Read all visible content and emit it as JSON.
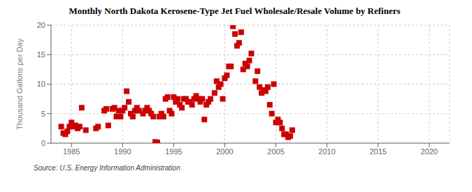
{
  "chart_data": {
    "type": "scatter",
    "title": "Monthly North Dakota Kerosene-Type Jet Fuel Wholesale/Resale Volume by Refiners",
    "ylabel": "Thousand Gallons per Day",
    "annotations": [
      "Source: U.S. Energy Information Administration"
    ],
    "color": "#cc0000",
    "marker": "square",
    "grid": true,
    "xlim": [
      1983,
      2022
    ],
    "ylim": [
      0,
      20
    ],
    "xticks": [
      1985,
      1990,
      1995,
      2000,
      2005,
      2010,
      2015,
      2020
    ],
    "yticks": [
      0,
      5,
      10,
      15,
      20
    ],
    "x": [
      1984.0,
      1984.2,
      1984.4,
      1984.6,
      1984.8,
      1985.0,
      1985.2,
      1985.4,
      1985.6,
      1985.8,
      1986.0,
      1986.4,
      1987.4,
      1987.6,
      1988.2,
      1988.4,
      1988.6,
      1989.0,
      1989.2,
      1989.4,
      1989.6,
      1989.8,
      1990.0,
      1990.2,
      1990.4,
      1990.6,
      1990.8,
      1991.0,
      1991.2,
      1991.4,
      1991.6,
      1992.0,
      1992.2,
      1992.4,
      1992.6,
      1992.8,
      1993.0,
      1993.2,
      1993.4,
      1993.6,
      1993.8,
      1994.0,
      1994.2,
      1994.4,
      1994.6,
      1994.8,
      1995.0,
      1995.2,
      1995.4,
      1995.6,
      1995.8,
      1996.0,
      1996.2,
      1996.4,
      1996.6,
      1996.8,
      1997.0,
      1997.2,
      1997.4,
      1997.6,
      1997.8,
      1998.0,
      1998.2,
      1998.4,
      1998.6,
      1999.0,
      1999.2,
      1999.4,
      1999.6,
      1999.8,
      2000.0,
      2000.2,
      2000.4,
      2000.6,
      2000.8,
      2001.0,
      2001.2,
      2001.4,
      2001.6,
      2001.8,
      2002.0,
      2002.2,
      2002.4,
      2002.6,
      2003.0,
      2003.2,
      2003.4,
      2003.6,
      2003.8,
      2004.0,
      2004.2,
      2004.4,
      2004.6,
      2004.8,
      2005.0,
      2005.2,
      2005.4,
      2005.6,
      2005.8,
      2006.0,
      2006.2,
      2006.4,
      2006.6
    ],
    "values": [
      2.8,
      1.7,
      1.5,
      2.0,
      2.8,
      3.5,
      2.8,
      3.0,
      2.5,
      2.8,
      6.0,
      2.2,
      2.5,
      2.8,
      5.5,
      5.8,
      3.0,
      5.8,
      6.0,
      4.5,
      5.5,
      4.5,
      5.5,
      6.0,
      8.8,
      7.0,
      5.0,
      4.5,
      5.5,
      6.0,
      5.5,
      5.0,
      5.5,
      6.0,
      5.5,
      5.0,
      4.5,
      0.2,
      0.1,
      4.5,
      5.0,
      4.5,
      7.5,
      7.8,
      5.5,
      5.0,
      7.8,
      7.0,
      7.5,
      6.5,
      6.0,
      7.5,
      7.5,
      7.0,
      7.0,
      6.5,
      7.5,
      8.0,
      7.5,
      7.0,
      7.5,
      4.0,
      6.5,
      7.0,
      7.5,
      8.5,
      10.5,
      9.5,
      10.0,
      7.5,
      11.0,
      11.5,
      13.0,
      13.0,
      19.8,
      18.5,
      16.5,
      17.0,
      18.8,
      12.5,
      13.5,
      13.0,
      14.0,
      15.2,
      10.5,
      12.2,
      9.5,
      8.5,
      9.0,
      8.8,
      9.5,
      6.5,
      5.0,
      10.0,
      3.5,
      4.0,
      3.5,
      2.5,
      1.5,
      1.5,
      1.0,
      1.2,
      2.2
    ]
  }
}
